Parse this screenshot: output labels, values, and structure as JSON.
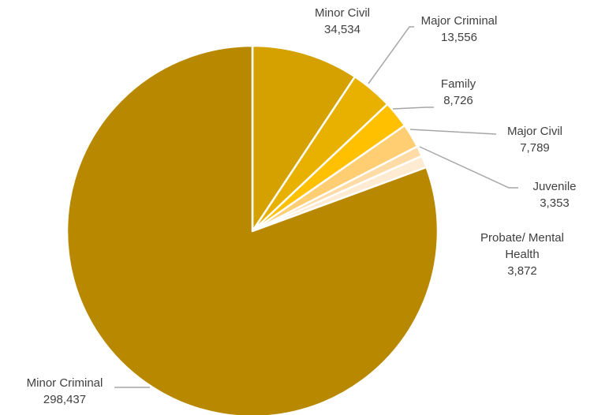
{
  "chart_data": {
    "type": "pie",
    "start_angle_deg": 0,
    "direction": "clockwise",
    "slices": [
      {
        "label_lines": [
          "Minor Civil"
        ],
        "value": 34534,
        "value_text": "34,534",
        "color": "#D5A100"
      },
      {
        "label_lines": [
          "Major Criminal"
        ],
        "value": 13556,
        "value_text": "13,556",
        "color": "#E8B100"
      },
      {
        "label_lines": [
          "Family"
        ],
        "value": 8726,
        "value_text": "8,726",
        "color": "#FFC000"
      },
      {
        "label_lines": [
          "Major Civil"
        ],
        "value": 7789,
        "value_text": "7,789",
        "color": "#FFCD72"
      },
      {
        "label_lines": [
          "Juvenile"
        ],
        "value": 3353,
        "value_text": "3,353",
        "color": "#FFDCA6"
      },
      {
        "label_lines": [
          "Probate/ Mental",
          "Health"
        ],
        "value": 3872,
        "value_text": "3,872",
        "color": "#FFEBD2"
      },
      {
        "label_lines": [
          "Minor Criminal"
        ],
        "value": 298437,
        "value_text": "298,437",
        "color": "#B88800"
      }
    ],
    "slice_border_color": "#FFFFFF",
    "leader_line_color": "#A6A6A6"
  }
}
